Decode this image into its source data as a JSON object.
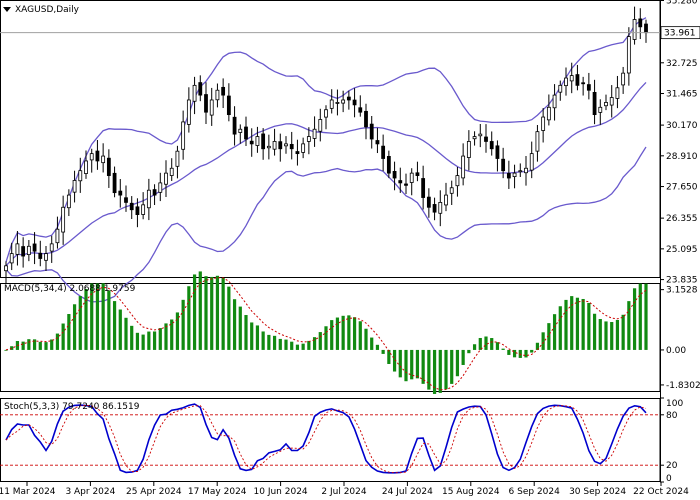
{
  "window": {
    "title": "XAGUSD,Daily",
    "menu_icon": "triangle-down-icon"
  },
  "chart_data": [
    {
      "type": "candlestick",
      "symbol": "XAGUSD",
      "timeframe": "Daily",
      "title": "XAGUSD,Daily",
      "ylim": [
        23.9,
        35.3
      ],
      "y_ticks": [
        "35.280",
        "34.015",
        "32.725",
        "31.465",
        "30.170",
        "28.910",
        "27.650",
        "26.355",
        "25.095",
        "23.835"
      ],
      "current_price_label": "33.961",
      "current_price": 33.961,
      "bollinger_bands": true,
      "closes": [
        24.4,
        24.9,
        25.3,
        24.8,
        25.2,
        25.0,
        24.7,
        24.9,
        25.3,
        25.9,
        26.8,
        27.3,
        27.9,
        28.3,
        28.7,
        29.0,
        28.7,
        28.9,
        28.1,
        27.4,
        27.3,
        27.0,
        26.7,
        26.5,
        26.9,
        27.5,
        27.3,
        27.8,
        28.2,
        28.4,
        29.1,
        30.3,
        31.2,
        31.8,
        31.4,
        30.7,
        31.2,
        31.6,
        31.4,
        30.6,
        29.8,
        30.0,
        29.6,
        29.4,
        29.7,
        29.2,
        29.3,
        29.5,
        29.2,
        29.4,
        29.2,
        29.0,
        29.4,
        29.7,
        30.0,
        30.4,
        30.8,
        31.2,
        31.1,
        31.2,
        31.2,
        31.0,
        30.7,
        30.1,
        29.6,
        29.4,
        28.8,
        28.2,
        28.0,
        27.8,
        27.7,
        28.2,
        28.1,
        27.2,
        26.8,
        26.6,
        27.0,
        27.3,
        27.6,
        28.1,
        28.9,
        29.5,
        29.7,
        29.8,
        29.5,
        29.2,
        28.8,
        28.3,
        28.0,
        28.2,
        28.3,
        28.4,
        29.0,
        29.9,
        30.5,
        30.9,
        31.4,
        31.8,
        32.1,
        32.2,
        31.8,
        31.9,
        31.6,
        30.6,
        30.9,
        31.1,
        31.3,
        31.7,
        32.3,
        33.8,
        34.5,
        34.2,
        33.96
      ],
      "indicators": [
        {
          "name": "MACD(5,34,4) 2.0688 1.9759",
          "type": "histogram+signal",
          "ylim": [
            -2.2,
            3.5
          ],
          "y_ticks": [
            "3.1528",
            "0.00",
            "-1.8302"
          ],
          "main_value": 2.0688,
          "signal_value": 1.9759
        },
        {
          "name": "Stoch(5,3,3) 79.7240 86.1519",
          "type": "lines",
          "ylim": [
            0,
            100
          ],
          "y_ticks": [
            "100",
            "80",
            "20",
            "0"
          ],
          "levels": [
            80,
            20
          ],
          "main_value": 79.724,
          "signal_value": 86.1519
        }
      ],
      "x_tick_labels": [
        "11 Mar 2024",
        "3 Apr 2024",
        "25 Apr 2024",
        "17 May 2024",
        "10 Jun 2024",
        "2 Jul 2024",
        "24 Jul 2024",
        "15 Aug 2024",
        "6 Sep 2024",
        "30 Sep 2024",
        "22 Oct 2024"
      ],
      "colors": {
        "bands": "#6a5acd",
        "candles": "#000000",
        "macd_hist": "#118a11",
        "signal": "#cc0000",
        "stoch_main": "#0000cd",
        "stoch_signal": "#cc0000",
        "grid": "#999999"
      }
    }
  ]
}
